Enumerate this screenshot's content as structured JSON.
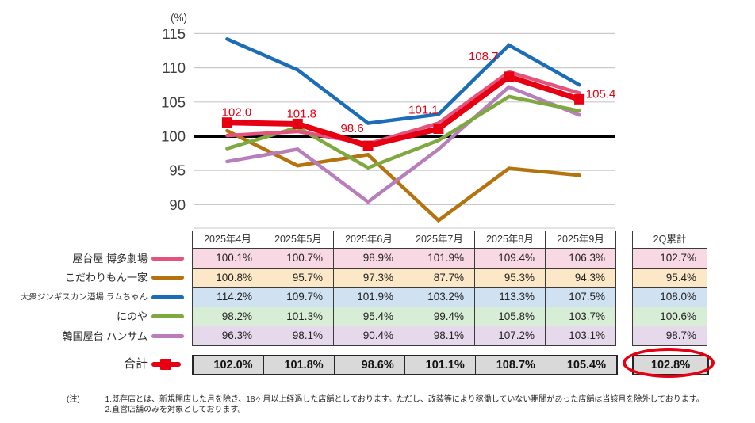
{
  "colors": {
    "accent_red": "#e60012",
    "grid_line": "#c9c9c9",
    "baseline_black": "#000000",
    "table_border": "#3a3a3a",
    "total_row_bg": "#d9d9d9"
  },
  "chart_data": {
    "type": "line",
    "unit_label": "(%)",
    "categories": [
      "2025年4月",
      "2025年5月",
      "2025年6月",
      "2025年7月",
      "2025年8月",
      "2025年9月"
    ],
    "y_ticks": [
      115,
      110,
      105,
      100,
      95,
      90
    ],
    "ylim": [
      86.5,
      116.5
    ],
    "baseline": 100,
    "grid": true,
    "legend_position": "left-of-table",
    "series": [
      {
        "name": "屋台屋 博多劇場",
        "color": "#e2537d",
        "row_bg": "#f8d8e3",
        "values": [
          100.1,
          100.7,
          98.9,
          101.9,
          109.4,
          106.3
        ],
        "q2_total": 102.7
      },
      {
        "name": "こだわりもん一家",
        "color": "#b5730f",
        "row_bg": "#fce7c7",
        "values": [
          100.8,
          95.7,
          97.3,
          87.7,
          95.3,
          94.3
        ],
        "q2_total": 95.4
      },
      {
        "name": "大衆ジンギスカン酒場 ラムちゃん",
        "color": "#1b6db8",
        "row_bg": "#d0e1f2",
        "values": [
          114.2,
          109.7,
          101.9,
          103.2,
          113.3,
          107.5
        ],
        "q2_total": 108.0
      },
      {
        "name": "にのや",
        "color": "#7fa83e",
        "row_bg": "#d7edd5",
        "values": [
          98.2,
          101.3,
          95.4,
          99.4,
          105.8,
          103.7
        ],
        "q2_total": 100.6
      },
      {
        "name": "韓国屋台 ハンサム",
        "color": "#b87dbb",
        "row_bg": "#e6d9ec",
        "values": [
          96.3,
          98.1,
          90.4,
          98.1,
          107.2,
          103.1
        ],
        "q2_total": 98.7
      }
    ],
    "total_series": {
      "name": "合計",
      "color": "#e60012",
      "values": [
        102.0,
        101.8,
        98.6,
        101.1,
        108.7,
        105.4
      ],
      "q2_total": 102.8,
      "point_labels": [
        "102.0",
        "101.8",
        "98.6",
        "101.1",
        "108.7",
        "105.4"
      ]
    }
  },
  "table": {
    "q2_header": "2Q累計"
  },
  "footnote": {
    "label": "(注)",
    "lines": [
      "1.既存店とは、新規開店した月を除き、18ヶ月以上経過した店舗としております。ただし、改装等により稼働していない期間があった店舗は当該月を除外しております。",
      "2.直営店舗のみを対象としております。"
    ]
  }
}
